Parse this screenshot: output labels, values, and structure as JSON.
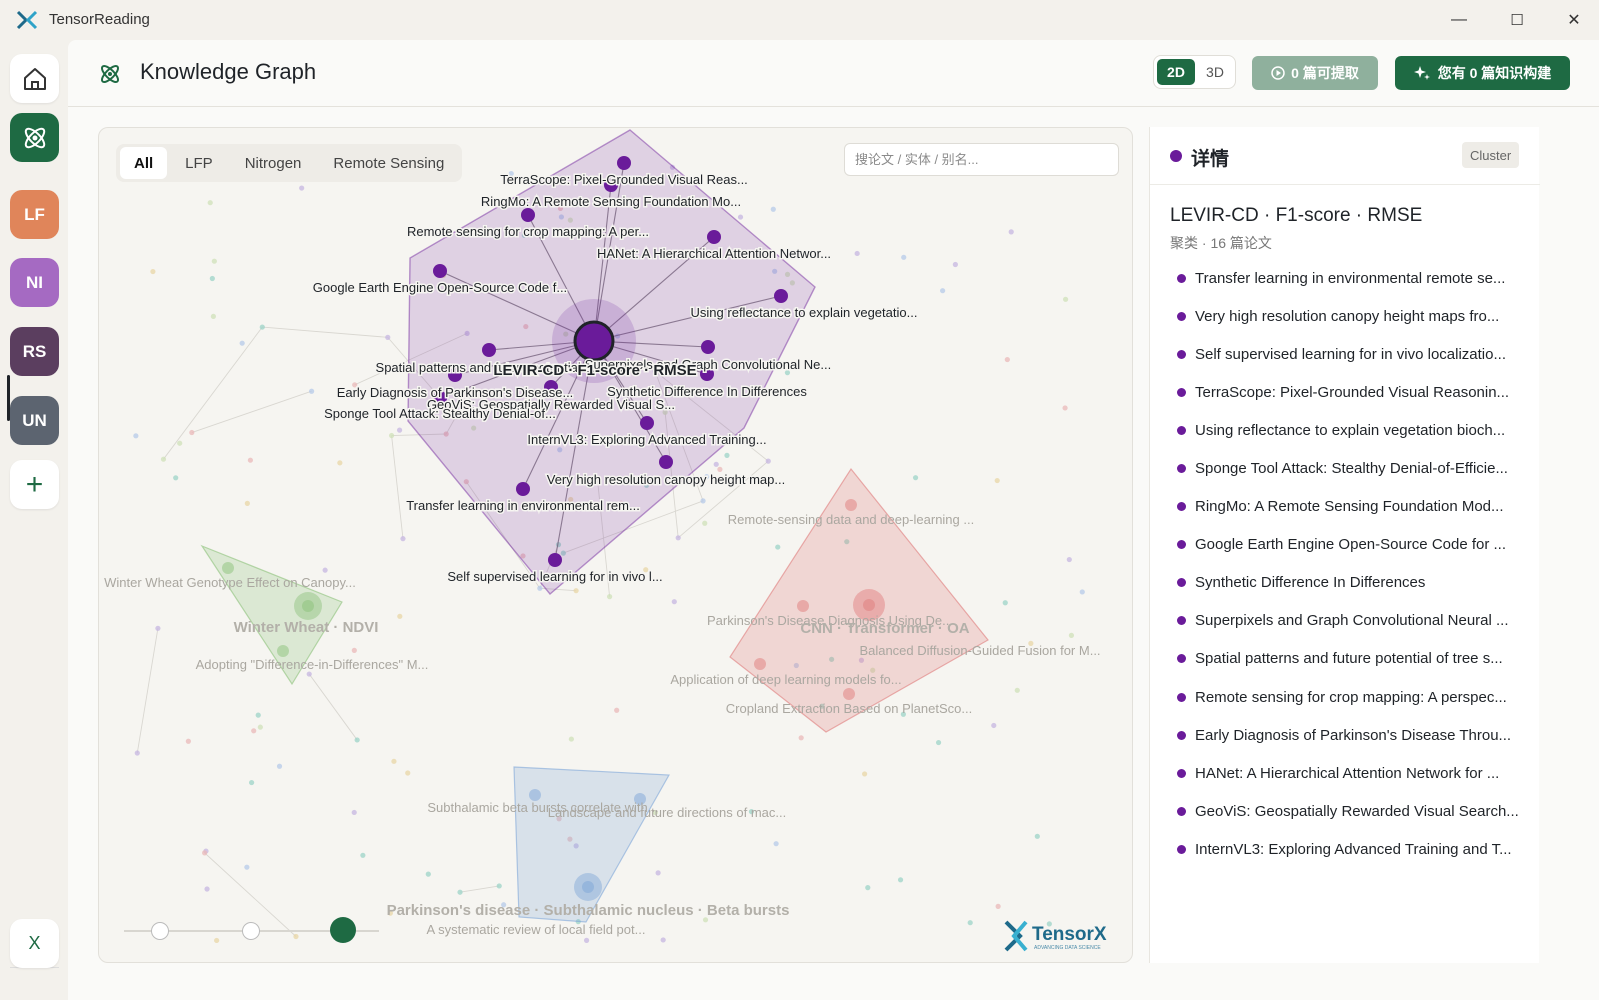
{
  "app": {
    "title": "TensorReading"
  },
  "window_controls": {
    "minimize": "—",
    "maximize": "☐",
    "close": "✕"
  },
  "sidebar": {
    "items": [
      {
        "id": "home",
        "label": "",
        "icon": "home-icon"
      },
      {
        "id": "graph",
        "label": "",
        "icon": "atom-icon"
      },
      {
        "id": "lf",
        "label": "LF",
        "color": "#e0855a"
      },
      {
        "id": "ni",
        "label": "NI",
        "color": "#a56ac2"
      },
      {
        "id": "rs",
        "label": "RS",
        "color": "#5b3e5f"
      },
      {
        "id": "un",
        "label": "UN",
        "color": "#5c6470"
      }
    ],
    "add_label": "+",
    "bottom_label": "X"
  },
  "header": {
    "title": "Knowledge Graph",
    "dim_2d": "2D",
    "dim_3d": "3D",
    "extract_label": "0 篇可提取",
    "build_label": "您有 0 篇知识构建"
  },
  "graph": {
    "tabs": [
      {
        "label": "All",
        "active": true
      },
      {
        "label": "LFP",
        "active": false
      },
      {
        "label": "Nitrogen",
        "active": false
      },
      {
        "label": "Remote Sensing",
        "active": false
      }
    ],
    "search_placeholder": "搜论文 / 实体 / 别名...",
    "selected_cluster": {
      "label": "LEVIR-CD · F1-score · RMSE",
      "color": "#6a1b9a",
      "nodes": [
        "TerraScope: Pixel-Grounded Visual Reas...",
        "RingMo: A Remote Sensing Foundation Mo...",
        "Remote sensing for crop mapping: A per...",
        "HANet: A Hierarchical Attention Networ...",
        "Google Earth Engine Open-Source Code f...",
        "Using reflectance to explain vegetatio...",
        "Spatial patterns and future potential o...",
        "Superpixels and Graph Convolutional Ne...",
        "Early Diagnosis of Parkinson's Disease...",
        "Synthetic Difference In Differences",
        "GeoViS: Geospatially Rewarded Visual S...",
        "Sponge Tool Attack: Stealthy Denial-of...",
        "InternVL3: Exploring Advanced Training...",
        "Very high resolution canopy height map...",
        "Transfer learning in environmental rem...",
        "Self supervised learning for in vivo l..."
      ]
    },
    "other_clusters": [
      {
        "label": "Winter Wheat · NDVI",
        "color": "#8cc27a",
        "nodes": [
          "Winter Wheat Genotype Effect on Canopy...",
          "Adopting \"Difference-in-Differences\" M..."
        ]
      },
      {
        "label": "CNN · Transformer · OA",
        "color": "#e07b7b",
        "nodes": [
          "Remote-sensing data and deep-learning ...",
          "Parkinson's Disease Diagnosis Using De...",
          "Balanced Diffusion-Guided Fusion for M...",
          "Application of deep learning models fo...",
          "Cropland Extraction Based on PlanetSco..."
        ]
      },
      {
        "label": "Parkinson's disease · Subthalamic nucleus · Beta bursts",
        "color": "#7ea6d8",
        "nodes": [
          "Subthalamic beta bursts correlate with...",
          "Landscape and future directions of mac...",
          "A systematic review of local field pot..."
        ]
      }
    ],
    "slider_stops": 3,
    "slider_active": 2
  },
  "detail": {
    "title": "详情",
    "badge": "Cluster",
    "cluster_name": "LEVIR-CD · F1-score · RMSE",
    "cluster_meta": "聚类 · 16 篇论文",
    "papers": [
      "Transfer learning in environmental remote se...",
      "Very high resolution canopy height maps fro...",
      "Self supervised learning for in vivo localizatio...",
      "TerraScope: Pixel-Grounded Visual Reasonin...",
      "Using reflectance to explain vegetation bioch...",
      "Sponge Tool Attack: Stealthy Denial-of-Efficie...",
      "RingMo: A Remote Sensing Foundation Mod...",
      "Google Earth Engine Open-Source Code for ...",
      "Synthetic Difference In Differences",
      "Superpixels and Graph Convolutional Neural ...",
      "Spatial patterns and future potential of tree s...",
      "Remote sensing for crop mapping: A perspec...",
      "Early Diagnosis of Parkinson's Disease Throu...",
      "HANet: A Hierarchical Attention Network for ...",
      "GeoViS: Geospatially Rewarded Visual Search...",
      "InternVL3: Exploring Advanced Training and T..."
    ]
  },
  "brand": {
    "logo_text": "TensorX",
    "logo_sub": "ADVANCING DATA SCIENCE"
  }
}
